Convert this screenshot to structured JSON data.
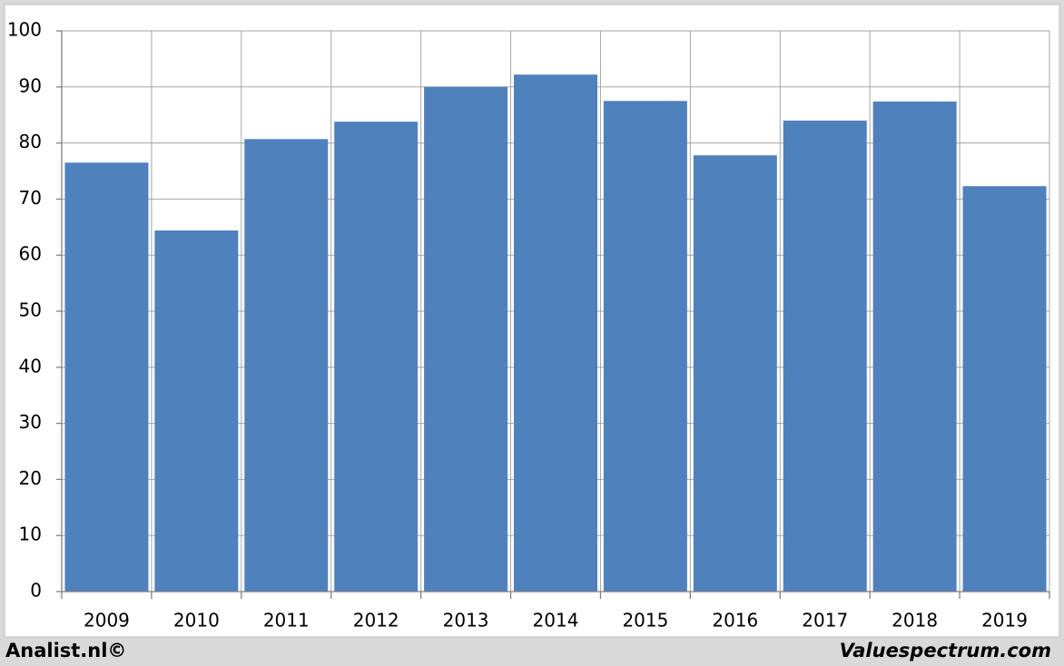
{
  "chart_data": {
    "type": "bar",
    "categories": [
      "2009",
      "2010",
      "2011",
      "2012",
      "2013",
      "2014",
      "2015",
      "2016",
      "2017",
      "2018",
      "2019"
    ],
    "values": [
      76.5,
      64.4,
      80.7,
      83.8,
      90.0,
      92.2,
      87.5,
      77.8,
      84.0,
      87.4,
      72.3
    ],
    "color": "#4f81bd",
    "ylim": [
      0,
      100
    ],
    "yticks": [
      0,
      10,
      20,
      30,
      40,
      50,
      60,
      70,
      80,
      90,
      100
    ],
    "grid": true,
    "footer_left": "Analist.nl©",
    "footer_right": "Valuespectrum.com"
  }
}
